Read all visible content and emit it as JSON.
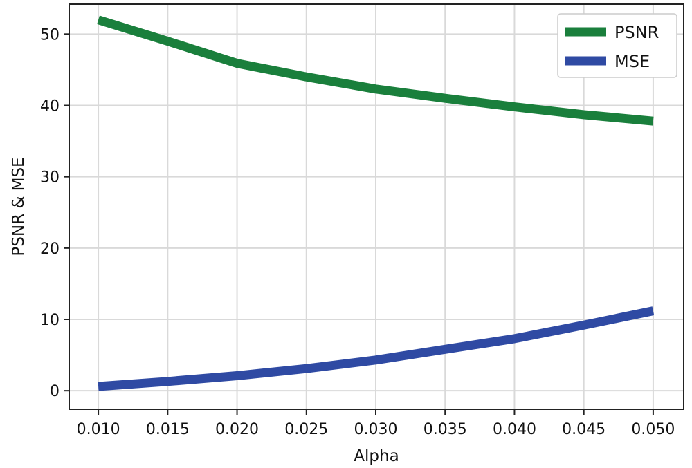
{
  "chart_data": {
    "type": "line",
    "xlabel": "Alpha",
    "ylabel": "PSNR & MSE",
    "x": [
      0.01,
      0.015,
      0.02,
      0.025,
      0.03,
      0.035,
      0.04,
      0.045,
      0.05
    ],
    "xticks": [
      0.01,
      0.015,
      0.02,
      0.025,
      0.03,
      0.035,
      0.04,
      0.045,
      0.05
    ],
    "xtick_labels": [
      "0.010",
      "0.015",
      "0.020",
      "0.025",
      "0.030",
      "0.035",
      "0.040",
      "0.045",
      "0.050"
    ],
    "yticks": [
      0,
      10,
      20,
      30,
      40,
      50
    ],
    "ytick_labels": [
      "0",
      "10",
      "20",
      "30",
      "40",
      "50"
    ],
    "xlim": [
      0.0079,
      0.0522
    ],
    "ylim": [
      -2.6,
      54.2
    ],
    "grid": true,
    "legend_position": "top-right",
    "series": [
      {
        "name": "PSNR",
        "color": "#1a7f3c",
        "values": [
          52.0,
          49.0,
          45.9,
          44.0,
          42.3,
          41.0,
          39.8,
          38.7,
          37.8
        ]
      },
      {
        "name": "MSE",
        "color": "#2f4aa3",
        "values": [
          0.6,
          1.3,
          2.1,
          3.1,
          4.3,
          5.8,
          7.3,
          9.2,
          11.2
        ]
      }
    ]
  }
}
